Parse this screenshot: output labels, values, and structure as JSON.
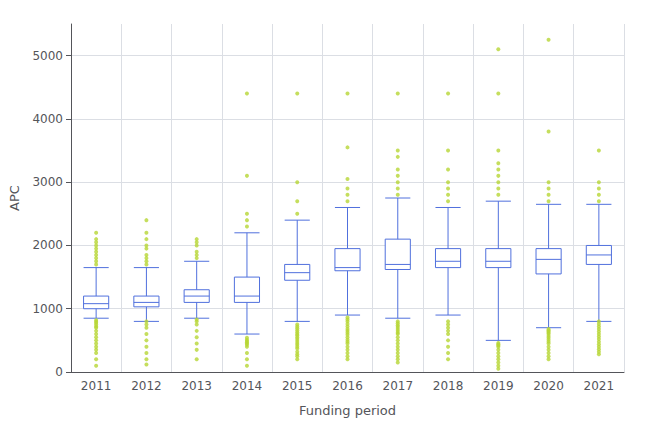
{
  "chart_data": {
    "type": "box",
    "categories": [
      "2011",
      "2012",
      "2013",
      "2014",
      "2015",
      "2016",
      "2017",
      "2018",
      "2019",
      "2020",
      "2021"
    ],
    "boxes": [
      {
        "q1": 1000,
        "median": 1080,
        "q3": 1200,
        "whislo": 850,
        "whishi": 1650,
        "fliers": [
          100,
          200,
          300,
          350,
          400,
          450,
          500,
          550,
          600,
          650,
          700,
          720,
          750,
          780,
          800,
          820,
          1700,
          1750,
          1800,
          1850,
          1900,
          1950,
          2000,
          2050,
          2100,
          2200
        ]
      },
      {
        "q1": 1030,
        "median": 1100,
        "q3": 1200,
        "whislo": 800,
        "whishi": 1650,
        "fliers": [
          120,
          200,
          300,
          400,
          500,
          600,
          700,
          750,
          800,
          1700,
          1750,
          1800,
          1850,
          1950,
          2000,
          2100,
          2200,
          2400
        ]
      },
      {
        "q1": 1100,
        "median": 1200,
        "q3": 1300,
        "whislo": 850,
        "whishi": 1750,
        "fliers": [
          200,
          350,
          450,
          550,
          650,
          750,
          800,
          830,
          1800,
          1850,
          1900,
          2000,
          2050,
          2100
        ]
      },
      {
        "q1": 1100,
        "median": 1200,
        "q3": 1500,
        "whislo": 600,
        "whishi": 2200,
        "fliers": [
          100,
          200,
          300,
          400,
          430,
          450,
          470,
          490,
          510,
          540,
          2300,
          2400,
          2500,
          3100,
          4400
        ]
      },
      {
        "q1": 1450,
        "median": 1570,
        "q3": 1700,
        "whislo": 800,
        "whishi": 2400,
        "fliers": [
          200,
          250,
          280,
          320,
          370,
          400,
          430,
          460,
          490,
          520,
          550,
          580,
          600,
          630,
          660,
          690,
          720,
          750,
          2500,
          2700,
          3000,
          4400
        ]
      },
      {
        "q1": 1600,
        "median": 1650,
        "q3": 1950,
        "whislo": 900,
        "whishi": 2600,
        "fliers": [
          200,
          250,
          300,
          350,
          400,
          450,
          480,
          510,
          550,
          590,
          620,
          650,
          680,
          720,
          760,
          800,
          830,
          860,
          2700,
          2800,
          2900,
          3050,
          3550,
          4400
        ]
      },
      {
        "q1": 1620,
        "median": 1700,
        "q3": 2100,
        "whislo": 850,
        "whishi": 2750,
        "fliers": [
          150,
          200,
          250,
          300,
          350,
          400,
          450,
          500,
          550,
          600,
          620,
          650,
          680,
          710,
          740,
          770,
          800,
          2800,
          2900,
          3000,
          3100,
          3200,
          3400,
          3500,
          4400
        ]
      },
      {
        "q1": 1650,
        "median": 1750,
        "q3": 1950,
        "whislo": 900,
        "whishi": 2600,
        "fliers": [
          200,
          300,
          400,
          500,
          600,
          650,
          700,
          750,
          800,
          2700,
          2800,
          2900,
          3000,
          3200,
          3500,
          4400
        ]
      },
      {
        "q1": 1650,
        "median": 1750,
        "q3": 1950,
        "whislo": 500,
        "whishi": 2700,
        "fliers": [
          50,
          100,
          150,
          200,
          250,
          300,
          350,
          400,
          420,
          440,
          460,
          2800,
          2900,
          3000,
          3100,
          3200,
          3300,
          3500,
          4400,
          5100
        ]
      },
      {
        "q1": 1550,
        "median": 1780,
        "q3": 1950,
        "whislo": 700,
        "whishi": 2650,
        "fliers": [
          200,
          250,
          300,
          350,
          400,
          450,
          480,
          510,
          540,
          570,
          600,
          620,
          640,
          660,
          680,
          2700,
          2800,
          2900,
          3000,
          3800,
          5250
        ]
      },
      {
        "q1": 1700,
        "median": 1850,
        "q3": 2000,
        "whislo": 800,
        "whishi": 2650,
        "fliers": [
          280,
          320,
          360,
          400,
          440,
          480,
          520,
          560,
          600,
          640,
          680,
          720,
          760,
          800,
          2700,
          2800,
          2900,
          3000,
          3500
        ]
      }
    ],
    "xlabel": "Funding period",
    "ylabel": "APC",
    "ylim": [
      0,
      5500
    ],
    "yticks": [
      0,
      1000,
      2000,
      3000,
      4000,
      5000
    ],
    "grid": true
  }
}
